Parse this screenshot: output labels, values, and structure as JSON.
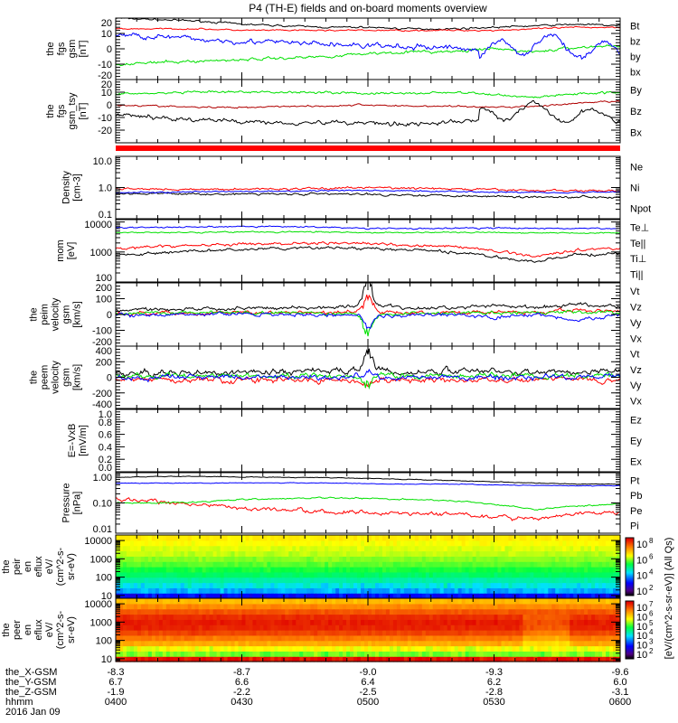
{
  "title": "P4 (TH-E) fields and on-board moments overview",
  "colorbar_label": "[eV/(cm^2-s-sr-eV)] (All Qs)",
  "colors": {
    "black": "#000000",
    "red": "#ff0000",
    "green": "#00e000",
    "blue": "#0000ff",
    "darkred": "#b00000"
  },
  "chart_data": {
    "type": "line",
    "x_axis": {
      "row_labels": [
        "the_X-GSM",
        "the_Y-GSM",
        "the_Z-GSM",
        "hhmm",
        "2016 Jan 09"
      ],
      "ticks": [
        {
          "x": "-8.3",
          "y": "6.7",
          "z": "-1.9",
          "hhmm": "0400"
        },
        {
          "x": "-8.7",
          "y": "6.6",
          "z": "-2.2",
          "hhmm": "0430"
        },
        {
          "x": "-9.0",
          "y": "6.4",
          "z": "-2.5",
          "hhmm": "0500"
        },
        {
          "x": "-9.3",
          "y": "6.2",
          "z": "-2.8",
          "hhmm": "0530"
        },
        {
          "x": "-9.6",
          "y": "6.0",
          "z": "-3.1",
          "hhmm": "0600"
        }
      ]
    },
    "panels": [
      {
        "ylabel": [
          "the",
          "fgs",
          "gsm",
          "[nT]"
        ],
        "scale": "lin",
        "range": [
          -20,
          20
        ],
        "ticks": [
          {
            "v": 20,
            "l": "20"
          },
          {
            "v": 10,
            "l": "10"
          },
          {
            "v": 0,
            "l": "0"
          },
          {
            "v": -10,
            "l": "-10"
          },
          {
            "v": -20,
            "l": "-20"
          }
        ],
        "series": [
          {
            "name": "Bt",
            "color": "#000000",
            "values": [
              20,
              19,
              18,
              16,
              15,
              14,
              14,
              13,
              13,
              14,
              15,
              16,
              15
            ],
            "noise": 0.5
          },
          {
            "name": "bz",
            "color": "#ff0000",
            "values": [
              13,
              13,
              13,
              12,
              12,
              12,
              12,
              12,
              12,
              12,
              13,
              14,
              14
            ],
            "noise": 0.4
          },
          {
            "name": "by",
            "color": "#00e000",
            "values": [
              -10,
              -9,
              -8,
              -7,
              -6,
              -5,
              -3,
              -2,
              -2,
              0,
              -2,
              1,
              2
            ],
            "noise": 0.8
          },
          {
            "name": "bx",
            "color": "#0000ff",
            "values": [
              9,
              8,
              6,
              5,
              4,
              3,
              2,
              1,
              1,
              -2,
              5,
              0,
              -2
            ],
            "noise": 1.5
          }
        ]
      },
      {
        "ylabel": [
          "the",
          "fgs",
          "gsm_tsy",
          "[nT]"
        ],
        "scale": "lin",
        "range": [
          -30,
          20
        ],
        "ticks": [
          {
            "v": 20,
            "l": "20"
          },
          {
            "v": 10,
            "l": "10"
          },
          {
            "v": 0,
            "l": "0"
          },
          {
            "v": -10,
            "l": "-10"
          },
          {
            "v": -20,
            "l": "-20"
          }
        ],
        "series": [
          {
            "name": "By",
            "color": "#00e000",
            "values": [
              9,
              9,
              10,
              10,
              10,
              10,
              9,
              9,
              10,
              8,
              6,
              9,
              10
            ],
            "noise": 0.8
          },
          {
            "name": "Bz",
            "color": "#b00000",
            "values": [
              0,
              -1,
              -2,
              -2,
              -1,
              -1,
              0,
              -1,
              -1,
              -2,
              -1,
              1,
              3
            ],
            "noise": 0.6
          },
          {
            "name": "Bx",
            "color": "#000000",
            "values": [
              -8,
              -10,
              -12,
              -13,
              -14,
              -14,
              -14,
              -15,
              -14,
              -10,
              -8,
              -14,
              -12
            ],
            "noise": 1.5
          }
        ]
      },
      {
        "ylabel": [
          "Density",
          "[cm-3]"
        ],
        "scale": "log",
        "range": [
          0.1,
          10
        ],
        "ticks": [
          {
            "v": 10,
            "l": "10.0"
          },
          {
            "v": 1,
            "l": "1.0"
          },
          {
            "v": 0.1,
            "l": "0.1"
          }
        ],
        "series": [
          {
            "name": "Ne",
            "color": "#ff0000",
            "values": [
              0.9,
              0.9,
              0.85,
              0.9,
              0.9,
              0.95,
              1.0,
              0.95,
              0.9,
              0.85,
              0.8,
              0.8,
              0.8
            ],
            "noise": 0.03
          },
          {
            "name": "Ni",
            "color": "#000000",
            "values": [
              0.65,
              0.63,
              0.62,
              0.62,
              0.63,
              0.62,
              0.6,
              0.58,
              0.56,
              0.52,
              0.5,
              0.5,
              0.5
            ],
            "noise": 0.03
          },
          {
            "name": "Npot",
            "color": "#0000ff",
            "values": [
              0.7,
              0.7,
              0.72,
              0.75,
              0.75,
              0.8,
              0.8,
              0.78,
              0.76,
              0.72,
              0.7,
              0.7,
              0.72
            ],
            "noise": 0.02
          }
        ]
      },
      {
        "ylabel": [
          "mom",
          "[eV]"
        ],
        "scale": "log",
        "range": [
          100,
          12000
        ],
        "ticks": [
          {
            "v": 10000,
            "l": "10000"
          },
          {
            "v": 1000,
            "l": "1000"
          },
          {
            "v": 100,
            "l": "100"
          }
        ],
        "series": [
          {
            "name": "Te⊥",
            "color": "#ff0000",
            "values": [
              1300,
              1500,
              1700,
              1800,
              1900,
              2000,
              1900,
              1700,
              1500,
              1100,
              700,
              1200,
              1300
            ],
            "noise": 0.04
          },
          {
            "name": "Te||",
            "color": "#000000",
            "values": [
              800,
              900,
              1100,
              1200,
              1300,
              1400,
              1300,
              1150,
              1000,
              700,
              450,
              800,
              900
            ],
            "noise": 0.04
          },
          {
            "name": "Ti⊥",
            "color": "#0000ff",
            "values": [
              6500,
              6600,
              6800,
              7000,
              7000,
              6800,
              6000,
              6000,
              6200,
              6300,
              6200,
              6000,
              6000
            ],
            "noise": 0.02
          },
          {
            "name": "Ti||",
            "color": "#00e000",
            "values": [
              4500,
              4500,
              4600,
              4700,
              4700,
              4600,
              4400,
              4400,
              4500,
              4500,
              4400,
              4300,
              4400
            ],
            "noise": 0.02
          }
        ]
      },
      {
        "ylabel": [
          "the",
          "peim",
          "velocity",
          "gsm",
          "[km/s]"
        ],
        "scale": "lin",
        "range": [
          -200,
          200
        ],
        "ticks": [
          {
            "v": 200,
            "l": "200"
          },
          {
            "v": 100,
            "l": "100"
          },
          {
            "v": 0,
            "l": "0"
          },
          {
            "v": -100,
            "l": "-100"
          },
          {
            "v": -200,
            "l": "-200"
          }
        ],
        "series": [
          {
            "name": "Vt",
            "color": "#000000",
            "values": [
              30,
              35,
              35,
              40,
              40,
              40,
              60,
              40,
              40,
              60,
              40,
              70,
              50
            ],
            "noise": 10,
            "spike": 160
          },
          {
            "name": "Vz",
            "color": "#ff0000",
            "values": [
              10,
              10,
              10,
              15,
              10,
              10,
              20,
              10,
              10,
              20,
              10,
              30,
              20
            ],
            "noise": 10,
            "spike": 100
          },
          {
            "name": "Vy",
            "color": "#00e000",
            "values": [
              10,
              10,
              10,
              10,
              10,
              10,
              0,
              10,
              10,
              10,
              10,
              20,
              10
            ],
            "noise": 10,
            "spike": -120
          },
          {
            "name": "Vx",
            "color": "#0000ff",
            "values": [
              0,
              0,
              5,
              5,
              0,
              0,
              -10,
              0,
              0,
              -20,
              0,
              -40,
              0
            ],
            "noise": 10,
            "spike": -60
          }
        ]
      },
      {
        "ylabel": [
          "the",
          "peem",
          "velocity",
          "gsm",
          "[km/s]"
        ],
        "scale": "lin",
        "range": [
          -400,
          400
        ],
        "ticks": [
          {
            "v": 400,
            "l": "400"
          },
          {
            "v": 200,
            "l": "200"
          },
          {
            "v": 0,
            "l": "0"
          },
          {
            "v": -200,
            "l": "-200"
          },
          {
            "v": -400,
            "l": "-400"
          }
        ],
        "series": [
          {
            "name": "Vt",
            "color": "#000000",
            "values": [
              60,
              60,
              60,
              70,
              70,
              70,
              90,
              70,
              70,
              70,
              70,
              70,
              70
            ],
            "noise": 35,
            "spike": 250
          },
          {
            "name": "Vz",
            "color": "#ff0000",
            "values": [
              -30,
              -30,
              -30,
              -30,
              -30,
              -30,
              -40,
              -30,
              -30,
              -30,
              -30,
              -30,
              -30
            ],
            "noise": 30,
            "spike": -80
          },
          {
            "name": "Vy",
            "color": "#00e000",
            "values": [
              20,
              20,
              20,
              20,
              20,
              20,
              20,
              20,
              20,
              20,
              20,
              20,
              20
            ],
            "noise": 30,
            "spike": -150
          },
          {
            "name": "Vx",
            "color": "#0000ff",
            "values": [
              0,
              0,
              0,
              0,
              0,
              0,
              0,
              0,
              0,
              0,
              0,
              0,
              0
            ],
            "noise": 30,
            "spike": 60
          }
        ]
      },
      {
        "ylabel": [
          "E=-VxB",
          "[mV/m]"
        ],
        "scale": "lin",
        "range": [
          0,
          1
        ],
        "ticks": [
          {
            "v": 1,
            "l": "1.0"
          },
          {
            "v": 0.8,
            "l": "0.8"
          },
          {
            "v": 0.6,
            "l": "0.6"
          },
          {
            "v": 0.4,
            "l": "0.4"
          },
          {
            "v": 0.2,
            "l": "0.2"
          },
          {
            "v": 0,
            "l": "0.0"
          }
        ],
        "series": [
          {
            "name": "Ez",
            "color": "#ff0000",
            "values": [],
            "noise": 0
          },
          {
            "name": "Ey",
            "color": "#00e000",
            "values": [],
            "noise": 0
          },
          {
            "name": "Ex",
            "color": "#0000ff",
            "values": [],
            "noise": 0
          }
        ]
      },
      {
        "ylabel": [
          "Pressure",
          "[nPa]"
        ],
        "scale": "log",
        "range": [
          0.01,
          1
        ],
        "ticks": [
          {
            "v": 1,
            "l": "1.00"
          },
          {
            "v": 0.1,
            "l": "0.10"
          },
          {
            "v": 0.01,
            "l": "0.01"
          }
        ],
        "series": [
          {
            "name": "Pt",
            "color": "#000000",
            "values": [
              0.7,
              0.75,
              0.75,
              0.72,
              0.7,
              0.68,
              0.65,
              0.6,
              0.55,
              0.5,
              0.45,
              0.42,
              0.42
            ],
            "noise": 0.01
          },
          {
            "name": "Pb",
            "color": "#ff0000",
            "values": [
              0.13,
              0.11,
              0.09,
              0.07,
              0.06,
              0.05,
              0.05,
              0.045,
              0.04,
              0.035,
              0.03,
              0.045,
              0.05
            ],
            "noise": 0.06
          },
          {
            "name": "Pe",
            "color": "#00e000",
            "values": [
              0.1,
              0.1,
              0.11,
              0.13,
              0.14,
              0.15,
              0.14,
              0.13,
              0.12,
              0.09,
              0.06,
              0.08,
              0.09
            ],
            "noise": 0.02
          },
          {
            "name": "Pi",
            "color": "#0000ff",
            "values": [
              0.45,
              0.45,
              0.45,
              0.46,
              0.46,
              0.46,
              0.43,
              0.42,
              0.42,
              0.4,
              0.38,
              0.37,
              0.37
            ],
            "noise": 0.01
          }
        ]
      }
    ],
    "spectrograms": [
      {
        "ylabel": [
          "the",
          "peir",
          "en",
          "eflux",
          "eV/",
          "(cm^2-s-",
          "sr-eV)"
        ],
        "yrange": [
          7,
          20000
        ],
        "ticks": [
          {
            "v": 10000,
            "l": "10000"
          },
          {
            "v": 1000,
            "l": "1000"
          },
          {
            "v": 100,
            "l": "100"
          },
          {
            "v": 10,
            "l": "10"
          }
        ],
        "levels": [
          0.22,
          0.36,
          0.42,
          0.47,
          0.52,
          0.56,
          0.6,
          0.63,
          0.66,
          0.68,
          0.7,
          0.72
        ],
        "colorbar_ticks": [
          {
            "exp": "8",
            "l": "10"
          },
          {
            "exp": "6",
            "l": "10"
          },
          {
            "exp": "4",
            "l": "10"
          },
          {
            "exp": "2",
            "l": "10"
          }
        ]
      },
      {
        "ylabel": [
          "the",
          "peer",
          "en",
          "eflux",
          "eV/",
          "(cm^2-s-",
          "sr-eV)"
        ],
        "yrange": [
          7,
          20000
        ],
        "ticks": [
          {
            "v": 10000,
            "l": "10000"
          },
          {
            "v": 1000,
            "l": "1000"
          },
          {
            "v": 100,
            "l": "100"
          },
          {
            "v": 10,
            "l": "10"
          }
        ],
        "levels": [
          0.98,
          0.62,
          0.7,
          0.8,
          0.86,
          0.92,
          0.96,
          0.97,
          0.95,
          0.9,
          0.84,
          0.78
        ],
        "colorbar_ticks": [
          {
            "exp": "7",
            "l": "10"
          },
          {
            "exp": "6",
            "l": "10"
          },
          {
            "exp": "5",
            "l": "10"
          },
          {
            "exp": "4",
            "l": "10"
          },
          {
            "exp": "3",
            "l": "10"
          },
          {
            "exp": "2",
            "l": "10"
          }
        ]
      }
    ]
  }
}
